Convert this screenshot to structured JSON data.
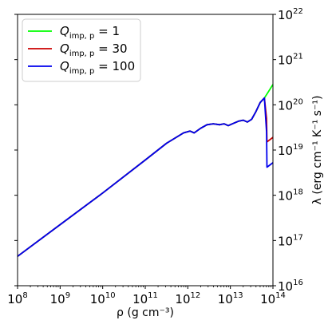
{
  "chart_data": {
    "type": "line",
    "xlabel": "ρ (g cm⁻³)",
    "ylabel": "λ (erg cm⁻¹ K⁻¹ s⁻¹)",
    "xscale": "log",
    "yscale": "log",
    "xlim": [
      100000000.0,
      100000000000000.0
    ],
    "ylim": [
      1e+16,
      1e+22
    ],
    "x_tick_exponents": [
      8,
      9,
      10,
      11,
      12,
      13,
      14
    ],
    "y_tick_exponents": [
      16,
      17,
      18,
      19,
      20,
      21,
      22
    ],
    "y_axis_side": "right",
    "grid": false,
    "legend_position": "top-left",
    "series": [
      {
        "name": "Q_imp,p = 1",
        "legend_symbol": "Q",
        "legend_sub": "imp, p",
        "legend_value": "= 1",
        "color": "#00ff00",
        "x": [
          8.0,
          9.0,
          10.0,
          11.0,
          11.5,
          11.9,
          12.05,
          12.15,
          12.3,
          12.45,
          12.6,
          12.75,
          12.85,
          12.95,
          13.05,
          13.2,
          13.3,
          13.4,
          13.5,
          13.6,
          13.7,
          13.8,
          13.9,
          14.0
        ],
        "y": [
          16.65,
          17.35,
          18.05,
          18.78,
          19.15,
          19.38,
          19.42,
          19.38,
          19.48,
          19.56,
          19.58,
          19.56,
          19.58,
          19.54,
          19.58,
          19.64,
          19.66,
          19.62,
          19.68,
          19.85,
          20.05,
          20.15,
          20.3,
          20.45
        ]
      },
      {
        "name": "Q_imp,p = 30",
        "legend_symbol": "Q",
        "legend_sub": "imp, p",
        "legend_value": "= 30",
        "color": "#cc0000",
        "x": [
          8.0,
          9.0,
          10.0,
          11.0,
          11.5,
          11.9,
          12.05,
          12.15,
          12.3,
          12.45,
          12.6,
          12.75,
          12.85,
          12.95,
          13.05,
          13.2,
          13.3,
          13.4,
          13.5,
          13.6,
          13.7,
          13.8,
          13.85,
          13.86,
          14.0
        ],
        "y": [
          16.65,
          17.35,
          18.05,
          18.78,
          19.15,
          19.38,
          19.42,
          19.38,
          19.48,
          19.56,
          19.58,
          19.56,
          19.58,
          19.54,
          19.58,
          19.64,
          19.66,
          19.62,
          19.68,
          19.85,
          20.05,
          20.15,
          19.7,
          19.18,
          19.28
        ]
      },
      {
        "name": "Q_imp,p = 100",
        "legend_symbol": "Q",
        "legend_sub": "imp, p",
        "legend_value": "= 100",
        "color": "#0000ee",
        "x": [
          8.0,
          9.0,
          10.0,
          11.0,
          11.5,
          11.9,
          12.05,
          12.15,
          12.3,
          12.45,
          12.6,
          12.75,
          12.85,
          12.95,
          13.05,
          13.2,
          13.3,
          13.4,
          13.5,
          13.6,
          13.7,
          13.8,
          13.85,
          13.86,
          14.0
        ],
        "y": [
          16.65,
          17.35,
          18.05,
          18.78,
          19.15,
          19.38,
          19.42,
          19.38,
          19.48,
          19.56,
          19.58,
          19.56,
          19.58,
          19.54,
          19.58,
          19.64,
          19.66,
          19.62,
          19.68,
          19.85,
          20.05,
          20.15,
          19.4,
          18.62,
          18.72
        ]
      }
    ]
  }
}
